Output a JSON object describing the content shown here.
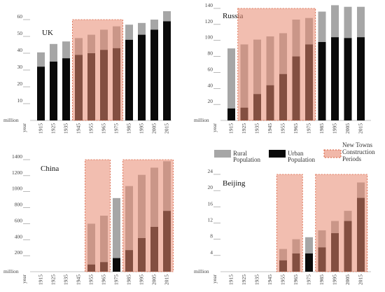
{
  "colors": {
    "rural": "#a6a6a6",
    "urban": "#0a0a0a",
    "period_fill": "#e8896f",
    "period_stroke": "#d8603f"
  },
  "legend": {
    "rural_label": "Rural",
    "rural_label2": "Population",
    "urban_label": "Urban",
    "urban_label2": "Population",
    "periods_label": "New Towns",
    "periods_label2": "Construction",
    "periods_label3": "Periods"
  },
  "chart_data": [
    {
      "type": "bar",
      "title": "UK",
      "ylabel": "million",
      "xlabel": "year",
      "ylim": [
        0,
        60
      ],
      "yticks": [
        10,
        20,
        30,
        40,
        50,
        60
      ],
      "categories": [
        "1915",
        "1925",
        "1935",
        "1945",
        "1955",
        "1965",
        "1975",
        "1985",
        "1995",
        "2005",
        "2015"
      ],
      "series": [
        {
          "name": "Urban Population",
          "values": [
            32,
            35,
            37,
            39,
            40,
            42,
            43,
            48,
            51,
            54,
            59
          ]
        },
        {
          "name": "Rural Population",
          "values": [
            8.5,
            10.5,
            10,
            10,
            11,
            12,
            13,
            9,
            7,
            6,
            6
          ]
        }
      ],
      "periods": [
        [
          "1945",
          "1975"
        ]
      ]
    },
    {
      "type": "bar",
      "title": "Russia",
      "ylabel": "million",
      "xlabel": "year",
      "ylim": [
        0,
        140
      ],
      "yticks": [
        20,
        40,
        60,
        80,
        100,
        120,
        140
      ],
      "categories": [
        "1915",
        "1925",
        "1935",
        "1945",
        "1955",
        "1965",
        "1975",
        "1985",
        "1995",
        "2005",
        "2015"
      ],
      "series": [
        {
          "name": "Urban Population",
          "values": [
            15,
            16,
            33,
            44,
            58,
            80,
            95,
            98,
            104,
            103,
            104
          ]
        },
        {
          "name": "Rural Population",
          "values": [
            75,
            79,
            68,
            61,
            51,
            46,
            33,
            38,
            40,
            39,
            38
          ]
        }
      ],
      "periods": [
        [
          "1925",
          "1975"
        ]
      ]
    },
    {
      "type": "bar",
      "title": "China",
      "ylabel": "million",
      "xlabel": "year",
      "ylim": [
        0,
        1400
      ],
      "yticks": [
        200,
        400,
        600,
        800,
        1000,
        1200,
        1400
      ],
      "categories": [
        "1915",
        "1925",
        "1935",
        "1945",
        "1955",
        "1965",
        "1975",
        "1985",
        "1995",
        "2005",
        "2015"
      ],
      "series": [
        {
          "name": "Urban Population",
          "values": [
            0,
            0,
            0,
            0,
            90,
            120,
            170,
            270,
            420,
            560,
            760
          ]
        },
        {
          "name": "Rural Population",
          "values": [
            0,
            0,
            0,
            0,
            510,
            580,
            750,
            800,
            790,
            740,
            620
          ]
        }
      ],
      "periods": [
        [
          "1955",
          "1965"
        ],
        [
          "1985",
          "2015"
        ]
      ]
    },
    {
      "type": "bar",
      "title": "Beijing",
      "ylabel": "million",
      "xlabel": "year",
      "ylim": [
        0,
        24
      ],
      "yticks": [
        4,
        8,
        12,
        16,
        20,
        24
      ],
      "categories": [
        "1915",
        "1925",
        "1935",
        "1945",
        "1955",
        "1965",
        "1975",
        "1985",
        "1995",
        "2005",
        "2015"
      ],
      "series": [
        {
          "name": "Urban Population",
          "values": [
            0,
            0,
            0,
            0,
            2.8,
            4.5,
            4.5,
            6,
            9.5,
            12.5,
            18.2
          ]
        },
        {
          "name": "Rural Population",
          "values": [
            0,
            0,
            0,
            0,
            2.8,
            3.5,
            4.0,
            4.2,
            3.0,
            2.5,
            3.8
          ]
        }
      ],
      "periods": [
        [
          "1955",
          "1965"
        ],
        [
          "1985",
          "2015"
        ]
      ]
    }
  ]
}
